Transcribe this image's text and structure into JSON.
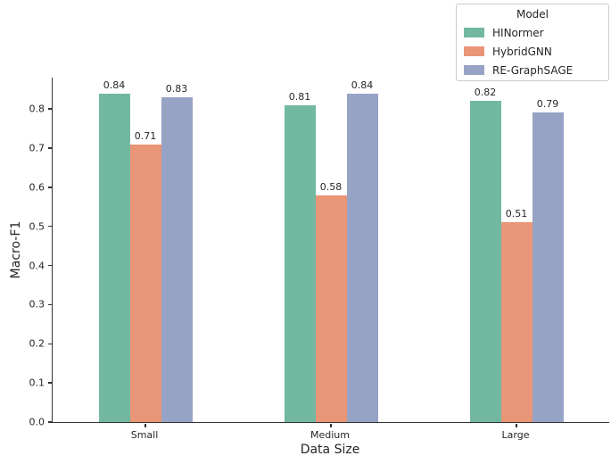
{
  "figure": {
    "background": "#ffffff",
    "axis_color": "#333333",
    "text_color": "#262626"
  },
  "chart_data": {
    "type": "bar",
    "title": "",
    "xlabel": "Data Size",
    "ylabel": "Macro-F1",
    "categories": [
      "Small",
      "Medium",
      "Large"
    ],
    "series": [
      {
        "name": "HINormer",
        "color": "#72B8A0",
        "values": [
          0.84,
          0.81,
          0.82
        ]
      },
      {
        "name": "HybridGNN",
        "color": "#E99577",
        "values": [
          0.71,
          0.58,
          0.51
        ]
      },
      {
        "name": "RE-GraphSAGE",
        "color": "#97A3C5",
        "values": [
          0.83,
          0.84,
          0.79
        ]
      }
    ],
    "bar_value_label_format": "0.00",
    "ylim": [
      0,
      0.88
    ],
    "yticks": [
      0.0,
      0.1,
      0.2,
      0.3,
      0.4,
      0.5,
      0.6,
      0.7,
      0.8
    ],
    "ytick_labels": [
      "0.0",
      "0.1",
      "0.2",
      "0.3",
      "0.4",
      "0.5",
      "0.6",
      "0.7",
      "0.8"
    ],
    "grid": false,
    "legend": {
      "title": "Model",
      "position": "upper right",
      "entries": [
        "HINormer",
        "HybridGNN",
        "RE-GraphSAGE"
      ]
    }
  }
}
